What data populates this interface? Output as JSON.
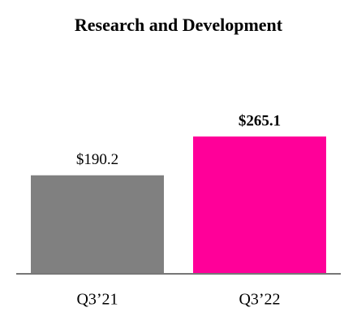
{
  "chart_data": {
    "type": "bar",
    "title": "Research and Development",
    "categories": [
      "Q3’21",
      "Q3’22"
    ],
    "values": [
      190.2,
      265.1
    ],
    "value_labels": [
      "$190.2",
      "$265.1"
    ],
    "colors": [
      "#808080",
      "#ff0099"
    ]
  }
}
